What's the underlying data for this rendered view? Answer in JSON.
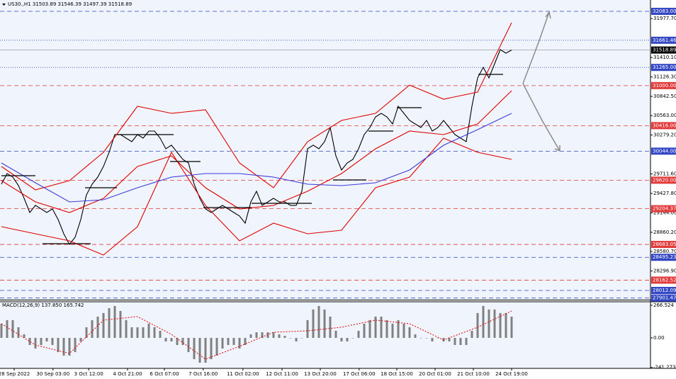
{
  "chart_data": [
    {
      "type": "line",
      "title": "US30.,H1  31503.89 31546.39 31497.39 31518.89",
      "xlim": [
        0,
        114.5
      ],
      "xticks": [
        {
          "value": 2.25,
          "label": "28 Sep 2022"
        },
        {
          "value": 9.1,
          "label": "30 Sep 03:00"
        },
        {
          "value": 15.4,
          "label": "3 Oct 12:00"
        },
        {
          "value": 22.25,
          "label": "4 Oct 21:00"
        },
        {
          "value": 28.75,
          "label": "6 Oct 07:00"
        },
        {
          "value": 35.6,
          "label": "7 Oct 16:00"
        },
        {
          "value": 42.6,
          "label": "11 Oct 02:00"
        },
        {
          "value": 49.5,
          "label": "12 Oct 11:00"
        },
        {
          "value": 56.25,
          "label": "13 Oct 20:00"
        },
        {
          "value": 63.1,
          "label": "17 Oct 06:00"
        },
        {
          "value": 69.75,
          "label": "18 Oct 15:00"
        },
        {
          "value": 76.5,
          "label": "20 Oct 01:00"
        },
        {
          "value": 83.25,
          "label": "21 Oct 10:00"
        },
        {
          "value": 90,
          "label": "24 Oct 19:00"
        }
      ],
      "ylim": [
        27888,
        32228
      ],
      "yticks": [
        {
          "value": 31977.7,
          "label": "31977.70"
        },
        {
          "value": 31410.1,
          "label": "31410.10"
        },
        {
          "value": 31126.3,
          "label": "31126.30"
        },
        {
          "value": 30842.5,
          "label": "30842.50"
        },
        {
          "value": 30563,
          "label": "30563.00"
        },
        {
          "value": 30279.2,
          "label": "30279.20"
        },
        {
          "value": 29711.6,
          "label": "29711.60"
        },
        {
          "value": 29427.8,
          "label": "29427.80"
        },
        {
          "value": 29144,
          "label": "29144.00"
        },
        {
          "value": 28860.2,
          "label": "28860.20"
        },
        {
          "value": 28580.7,
          "label": "28580.70"
        },
        {
          "value": 28296.9,
          "label": "28296.90"
        }
      ],
      "levels": [
        {
          "value": 32083,
          "label": "32083.00",
          "color": "#3346c4",
          "style": "dashed"
        },
        {
          "value": 31661.46,
          "label": "31661.46",
          "color": "#3346c4",
          "style": "dotted"
        },
        {
          "value": 31518.89,
          "label": "31518.89",
          "color": "#000000",
          "style": "solid"
        },
        {
          "value": 31265,
          "label": "31265.00",
          "color": "#3346c4",
          "style": "dotted"
        },
        {
          "value": 31000,
          "label": "31000.00",
          "color": "#e23a3a",
          "style": "dashed"
        },
        {
          "value": 30416,
          "label": "30416.00",
          "color": "#e23a3a",
          "style": "dashed"
        },
        {
          "value": 30044,
          "label": "30044.00",
          "color": "#3346c4",
          "style": "dashed"
        },
        {
          "value": 29620,
          "label": "29620.00",
          "color": "#e23a3a",
          "style": "dashed"
        },
        {
          "value": 29204.37,
          "label": "29204.37",
          "color": "#e23a3a",
          "style": "dashed"
        },
        {
          "value": 28683.05,
          "label": "28683.05",
          "color": "#e23a3a",
          "style": "dashed"
        },
        {
          "value": 28495.23,
          "label": "28495.23",
          "color": "#3346c4",
          "style": "dashed"
        },
        {
          "value": 28162.52,
          "label": "28162.52",
          "color": "#e23a3a",
          "style": "dashed"
        },
        {
          "value": 28012.09,
          "label": "28012.09",
          "color": "#3346c4",
          "style": "dashed"
        },
        {
          "value": 27901.47,
          "label": "27901.47",
          "color": "#3346c4",
          "style": "dashed"
        }
      ],
      "series": [
        {
          "color": "#000000",
          "values": [
            29562,
            29717,
            29666,
            29542,
            29356,
            29149,
            29253,
            29201,
            29149,
            29201,
            29046,
            28839,
            28684,
            28788,
            29046,
            29407,
            29562,
            29666,
            29821,
            30027,
            30286,
            30286,
            30234,
            30182,
            30286,
            30234,
            30337,
            30337,
            30234,
            30079,
            30131,
            30027,
            29924,
            29872,
            29562,
            29356,
            29201,
            29149,
            29201,
            29253,
            29201,
            29149,
            29098,
            28994,
            29304,
            29459,
            29253,
            29304,
            29356,
            29304,
            29304,
            29253,
            29253,
            29459,
            30079,
            30131,
            30079,
            30182,
            30389,
            29975,
            29769,
            29872,
            29924,
            30079,
            30286,
            30389,
            30544,
            30595,
            30544,
            30440,
            30699,
            30595,
            30492,
            30440,
            30389,
            30492,
            30337,
            30389,
            30492,
            30389,
            30286,
            30234,
            30182,
            30699,
            31112,
            31267,
            31112,
            31319,
            31525,
            31473,
            31519
          ]
        },
        {
          "color": "#e00000",
          "x": [
            0,
            6,
            12,
            18,
            24,
            30,
            36,
            42,
            48,
            54,
            60,
            66,
            72,
            78,
            84,
            90
          ],
          "values": [
            29820,
            29479,
            29614,
            30027,
            30699,
            30595,
            30647,
            29872,
            29510,
            30182,
            30492,
            30595,
            31008,
            30802,
            30905,
            31918
          ]
        },
        {
          "color": "#e00000",
          "x": [
            0,
            6,
            12,
            18,
            24,
            30,
            36,
            42,
            48,
            54,
            60,
            66,
            72,
            78,
            84,
            90
          ],
          "values": [
            29614,
            29304,
            29149,
            29355,
            29820,
            29975,
            29510,
            29200,
            29252,
            29459,
            29717,
            30079,
            30337,
            30285,
            30440,
            30926
          ]
        },
        {
          "color": "#e00000",
          "x": [
            0,
            6,
            12,
            18,
            24,
            30,
            36,
            42,
            48,
            54,
            60,
            66,
            72,
            78,
            84,
            90
          ],
          "values": [
            28942,
            28839,
            28735,
            28529,
            28942,
            30027,
            29252,
            28735,
            28994,
            28839,
            28890,
            29510,
            29665,
            30234,
            30027,
            29924
          ]
        },
        {
          "color": "#3c3cdc",
          "x": [
            0,
            6,
            12,
            18,
            24,
            30,
            36,
            42,
            48,
            54,
            60,
            66,
            72,
            78,
            84,
            90
          ],
          "values": [
            29872,
            29583,
            29304,
            29335,
            29510,
            29665,
            29717,
            29717,
            29665,
            29562,
            29541,
            29583,
            29769,
            30130,
            30358,
            30595
          ]
        }
      ]
    },
    {
      "type": "bar",
      "title": "MACD(12,26,9) 137.850 165.742",
      "xlim": [
        0,
        114.5
      ],
      "ylim": [
        -249,
        295
      ],
      "yticks": [
        266.524,
        {
          "value": 0,
          "label": "0.00"
        },
        -241.273
      ],
      "series": [
        {
          "color": "#808080",
          "values": [
            116,
            145,
            145,
            87,
            29,
            -58,
            -87,
            -58,
            -29,
            -58,
            -116,
            -145,
            -145,
            -116,
            -29,
            87,
            145,
            174,
            203,
            243,
            261,
            220,
            145,
            87,
            87,
            87,
            116,
            87,
            58,
            -29,
            -29,
            -58,
            -58,
            -116,
            -174,
            -203,
            -203,
            -174,
            -145,
            -87,
            -58,
            -58,
            -87,
            -58,
            29,
            46,
            46,
            46,
            46,
            29,
            17,
            0,
            -29,
            0,
            145,
            232,
            261,
            232,
            174,
            58,
            -29,
            -29,
            0,
            58,
            116,
            145,
            174,
            174,
            145,
            116,
            145,
            116,
            87,
            29,
            0,
            0,
            -29,
            0,
            -29,
            -29,
            -58,
            -58,
            -58,
            58,
            203,
            261,
            232,
            232,
            203,
            203,
            174
          ]
        },
        {
          "type": "line",
          "color": "#e00000",
          "x": [
            0,
            6,
            12,
            18,
            24,
            30,
            36,
            42,
            48,
            54,
            60,
            66,
            72,
            78,
            84,
            90
          ],
          "values": [
            116,
            -58,
            -127,
            145,
            174,
            29,
            -174,
            -69,
            46,
            58,
            87,
            145,
            116,
            -17,
            87,
            220
          ]
        }
      ]
    }
  ]
}
